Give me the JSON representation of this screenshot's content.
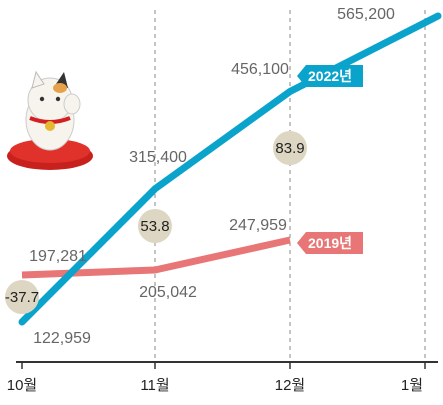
{
  "chart_data": {
    "type": "line",
    "categories": [
      "10월",
      "11월",
      "12월",
      "1월"
    ],
    "series": [
      {
        "name": "2022년",
        "color": "#0aa3cc",
        "values": [
          122959,
          315400,
          456100,
          565200
        ],
        "labels": [
          "122,959",
          "315,400",
          "456,100",
          "565,200"
        ]
      },
      {
        "name": "2019년",
        "color": "#e87676",
        "values": [
          197281,
          205042,
          247959,
          null
        ],
        "labels": [
          "197,281",
          "205,042",
          "247,959",
          ""
        ]
      }
    ],
    "change_labels": [
      "-37.7",
      "53.8",
      "83.9"
    ],
    "ylim": [
      100000,
      600000
    ],
    "grid": "vertical dashed lines at 11월, 12월, 1월",
    "legend": "inline tags at line ends",
    "decoration": "maneki-neko-icon"
  }
}
